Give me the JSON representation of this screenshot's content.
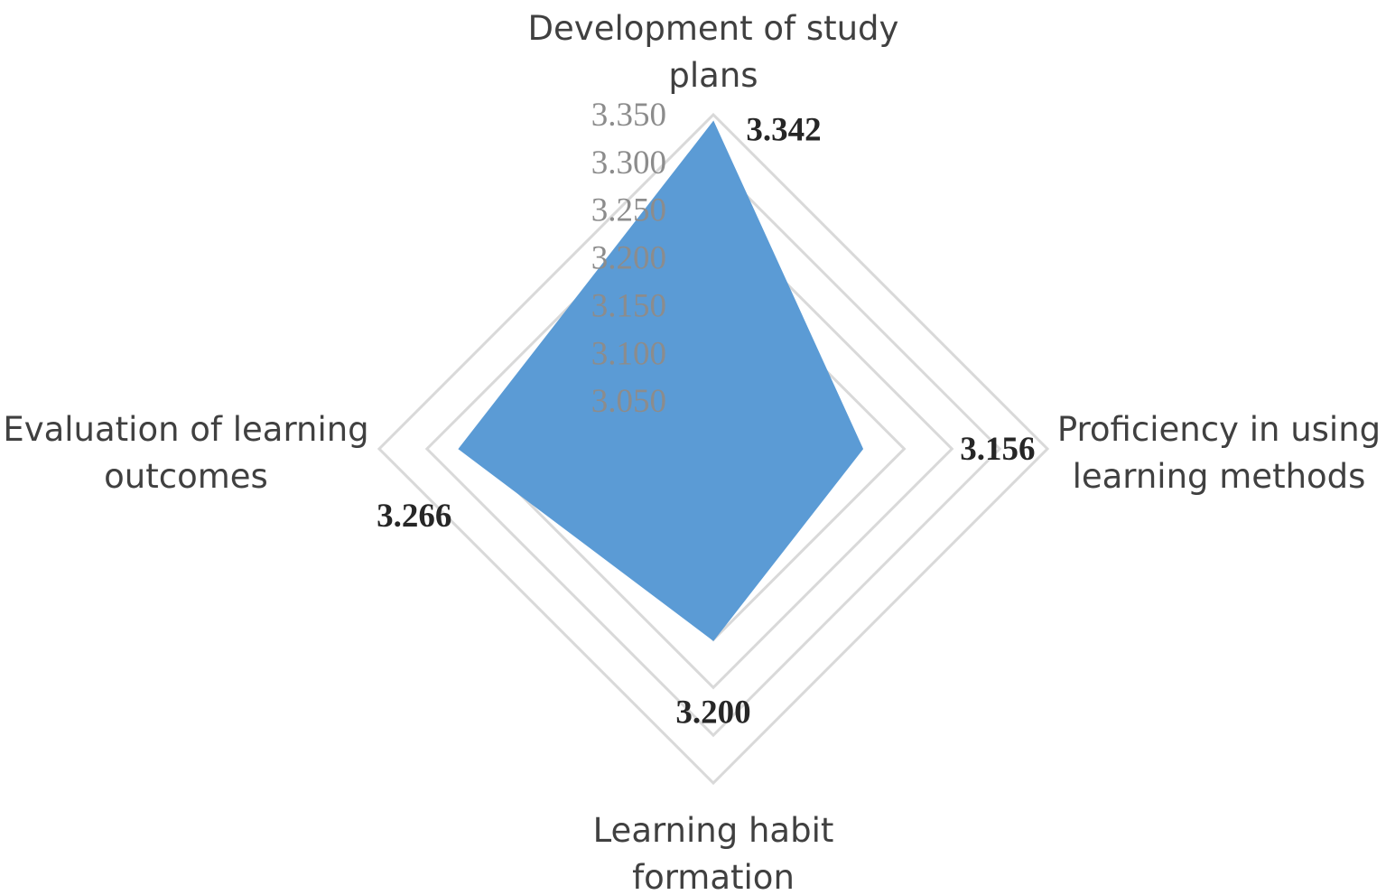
{
  "chart_data": {
    "type": "radar",
    "categories": [
      "Development of study plans",
      "Proficiency in using learning methods",
      "Learning habit formation",
      "Evaluation of learning outcomes"
    ],
    "category_lines": [
      [
        "Development of study",
        "plans"
      ],
      [
        "Proficiency in using",
        "learning methods"
      ],
      [
        "Learning habit",
        "formation"
      ],
      [
        "Evaluation of learning",
        "outcomes"
      ]
    ],
    "values": [
      3.342,
      3.156,
      3.2,
      3.266
    ],
    "data_labels": [
      "3.342",
      "3.156",
      "3.200",
      "3.266"
    ],
    "ticks": [
      "3.050",
      "3.100",
      "3.150",
      "3.200",
      "3.250",
      "3.300",
      "3.350"
    ],
    "rlim": [
      3.0,
      3.35
    ],
    "series_color": "#5b9bd5",
    "grid": true
  }
}
